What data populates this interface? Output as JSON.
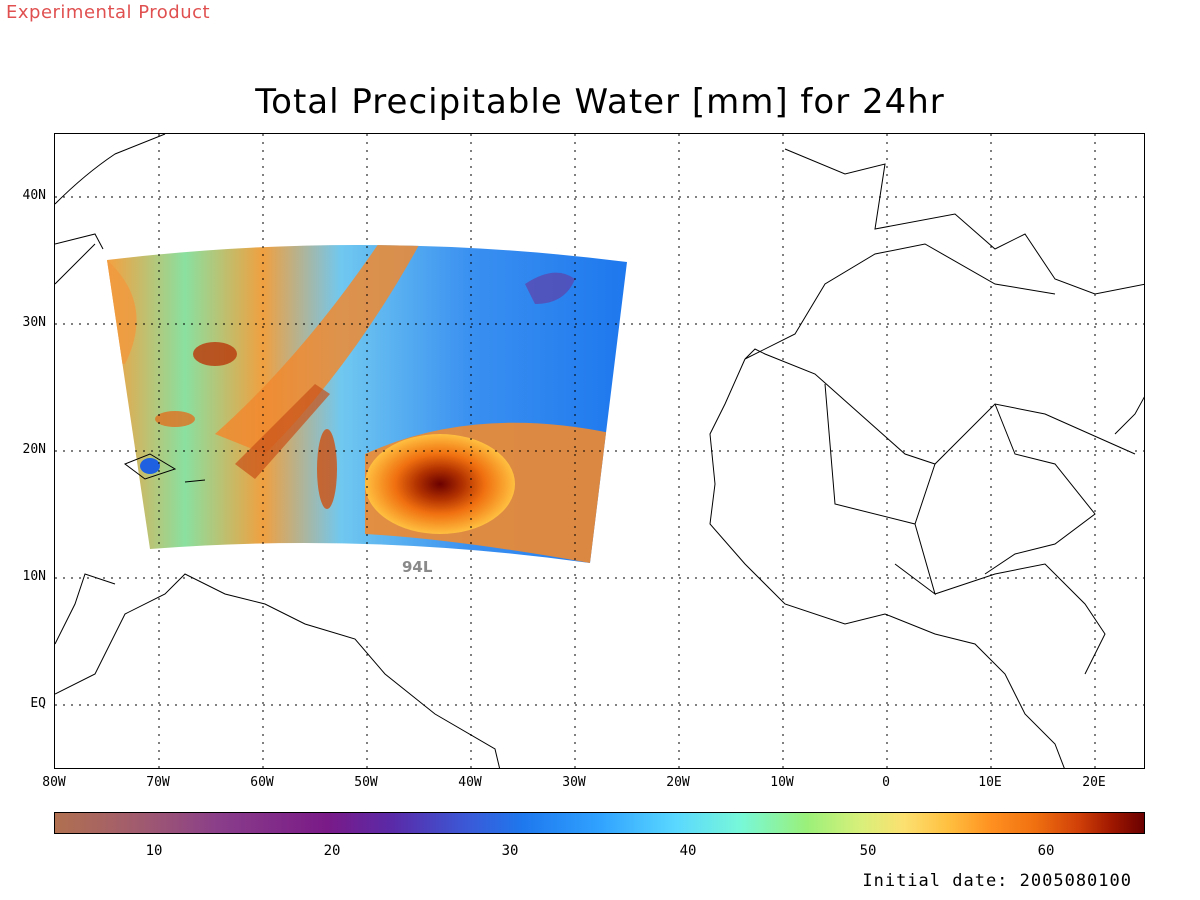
{
  "header": {
    "experimental_label": "Experimental Product",
    "title": "Total Precipitable Water [mm] for 24hr"
  },
  "map": {
    "projection": "lat-lon",
    "lon_range": [
      -80,
      25
    ],
    "lat_range": [
      -6,
      44
    ],
    "lat_labels": [
      "40N",
      "30N",
      "20N",
      "10N",
      "EQ"
    ],
    "lon_labels": [
      "80W",
      "70W",
      "60W",
      "50W",
      "40W",
      "30W",
      "20W",
      "10W",
      "0",
      "10E",
      "20E"
    ],
    "grid": "dotted",
    "storm_label": "94L",
    "storm_label_color": "#8a8a8a"
  },
  "colorbar": {
    "ticks": [
      "10",
      "20",
      "30",
      "40",
      "50",
      "60"
    ],
    "range": [
      5,
      65
    ]
  },
  "footer": {
    "init_date": "Initial date: 2005080100"
  },
  "colors": {
    "experimental": "#e05050",
    "low": "#b07050",
    "mid": "#30a2ff",
    "high": "#6a0000"
  }
}
